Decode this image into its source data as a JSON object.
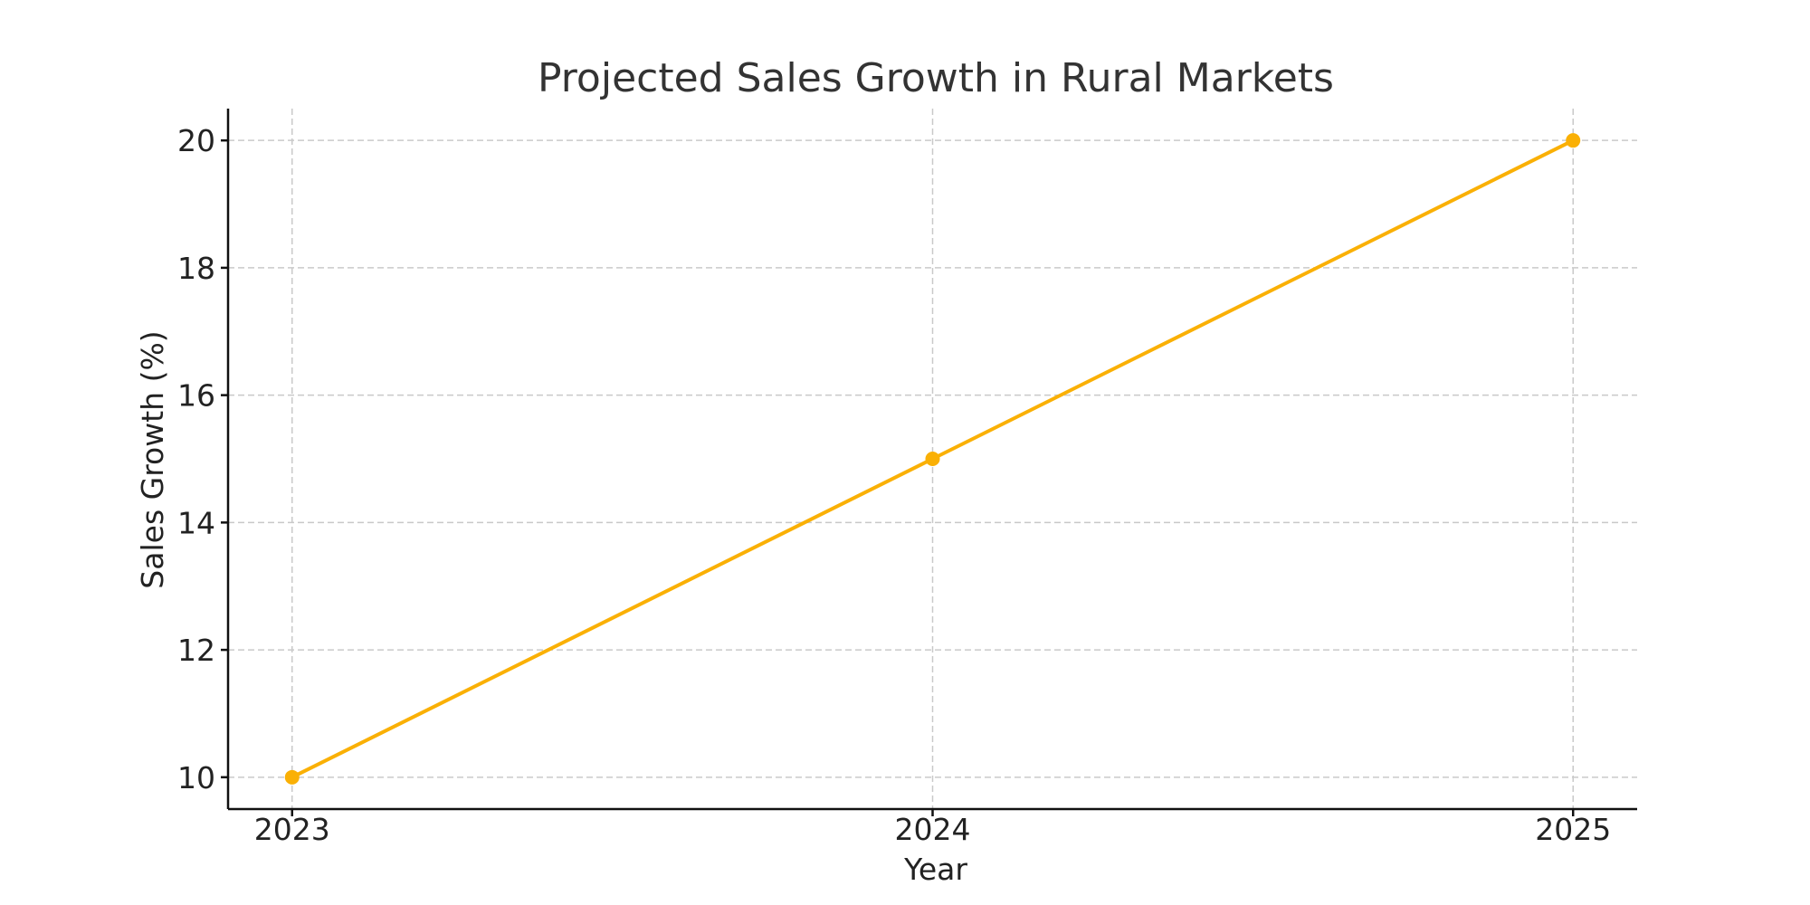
{
  "chart_data": {
    "type": "line",
    "title": "Projected Sales Growth in Rural Markets",
    "xlabel": "Year",
    "ylabel": "Sales Growth (%)",
    "x": [
      "2023",
      "2024",
      "2025"
    ],
    "series": [
      {
        "values": [
          10,
          15,
          20
        ],
        "color": "#FAB005",
        "marker": "circle"
      }
    ],
    "xlim": [
      -0.1,
      2.1
    ],
    "ylim": [
      9.5,
      20.5
    ],
    "yticks": [
      10,
      12,
      14,
      16,
      18,
      20
    ],
    "grid": true,
    "legend": false
  }
}
